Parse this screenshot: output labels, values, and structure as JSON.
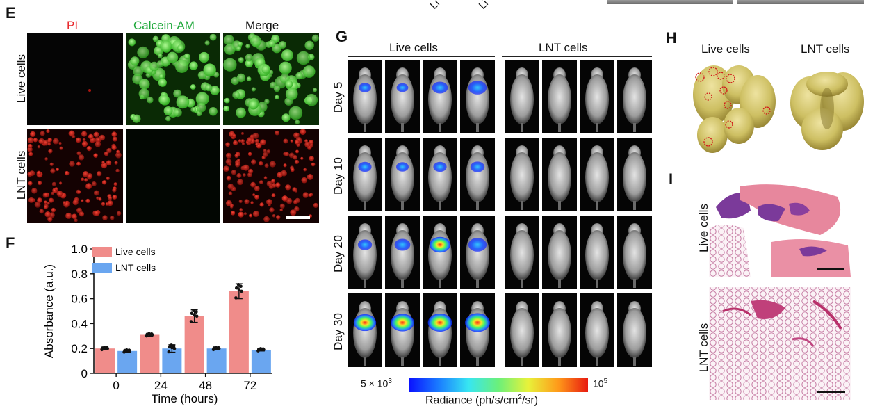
{
  "top_fragment": {
    "text_a": "Li",
    "text_b": "Li"
  },
  "panel_E": {
    "letter": "E",
    "columns": [
      "PI",
      "Calcein-AM",
      "Merge"
    ],
    "column_colors": [
      "#e8262a",
      "#1ea83a",
      "#111111"
    ],
    "rows": [
      "Live cells",
      "LNT cells"
    ]
  },
  "panel_F": {
    "letter": "F",
    "chart_data": {
      "type": "bar",
      "categories": [
        "0",
        "24",
        "48",
        "72"
      ],
      "series": [
        {
          "name": "Live cells",
          "color": "#f08c8a",
          "values": [
            0.2,
            0.31,
            0.46,
            0.66
          ],
          "errors": [
            0.01,
            0.01,
            0.05,
            0.06
          ]
        },
        {
          "name": "LNT cells",
          "color": "#6aa6f0",
          "values": [
            0.18,
            0.2,
            0.2,
            0.19
          ],
          "errors": [
            0.01,
            0.03,
            0.01,
            0.01
          ]
        }
      ],
      "xlabel": "Time (hours)",
      "ylabel": "Absorbance (a.u.)",
      "ylim": [
        0,
        1.0
      ],
      "yticks": [
        "0",
        "0.2",
        "0.4",
        "0.6",
        "0.8",
        "1.0"
      ],
      "legend": "top-left"
    }
  },
  "panel_G": {
    "letter": "G",
    "groups": [
      "Live cells",
      "LNT cells"
    ],
    "rows": [
      "Day 5",
      "Day 10",
      "Day 20",
      "Day 30"
    ],
    "signal_levels": [
      [
        0.25,
        0.2,
        0.45,
        0.6
      ],
      [
        0.3,
        0.25,
        0.3,
        0.35
      ],
      [
        0.35,
        0.45,
        0.75,
        0.6
      ],
      [
        0.85,
        0.9,
        0.95,
        1.0
      ]
    ],
    "colorbar": {
      "min_label": "5 × 10",
      "min_exp": "3",
      "max_label": "10",
      "max_exp": "5",
      "title": "Radiance (ph/s/cm",
      "title_exp": "2",
      "title_end": "/sr)"
    }
  },
  "panel_H": {
    "letter": "H",
    "labels": [
      "Live cells",
      "LNT cells"
    ]
  },
  "panel_I": {
    "letter": "I",
    "rows": [
      "Live cells",
      "LNT cells"
    ]
  }
}
